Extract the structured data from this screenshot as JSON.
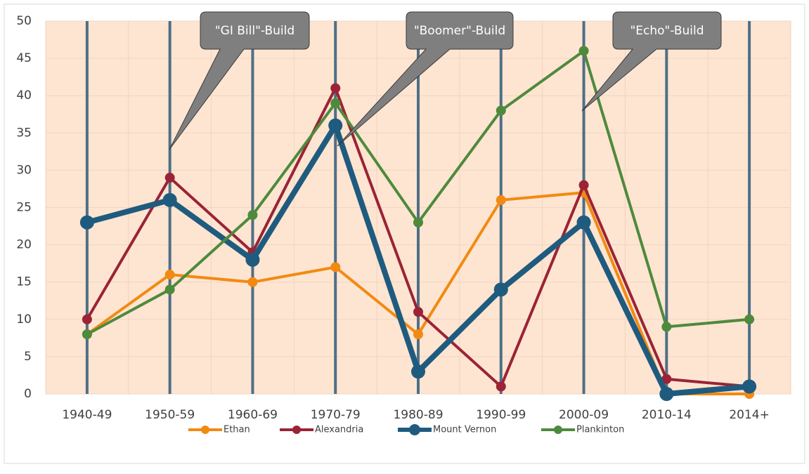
{
  "chart_data": {
    "type": "line",
    "categories": [
      "1940-49",
      "1950-59",
      "1960-69",
      "1970-79",
      "1980-89",
      "1990-99",
      "2000-09",
      "2010-14",
      "2014+"
    ],
    "series": [
      {
        "name": "Ethan",
        "color": "#f28a12",
        "values": [
          8,
          16,
          15,
          17,
          8,
          26,
          27,
          0,
          0
        ]
      },
      {
        "name": "Alexandria",
        "color": "#9b2335",
        "values": [
          10,
          29,
          19,
          41,
          11,
          1,
          28,
          2,
          1
        ]
      },
      {
        "name": "Mount Vernon",
        "color": "#1f5b7e",
        "values": [
          23,
          26,
          18,
          36,
          3,
          14,
          23,
          0,
          1
        ]
      },
      {
        "name": "Plankinton",
        "color": "#4e8a3c",
        "values": [
          8,
          14,
          24,
          39,
          23,
          38,
          46,
          9,
          10
        ]
      }
    ],
    "ylim": [
      0,
      50
    ],
    "yticks": [
      0,
      5,
      10,
      15,
      20,
      25,
      30,
      35,
      40,
      45,
      50
    ],
    "grid": true,
    "legend": "bottom",
    "annotations": [
      "\"GI Bill\"-Build",
      "\"Boomer\"-Build",
      "\"Echo\"-Build"
    ]
  }
}
